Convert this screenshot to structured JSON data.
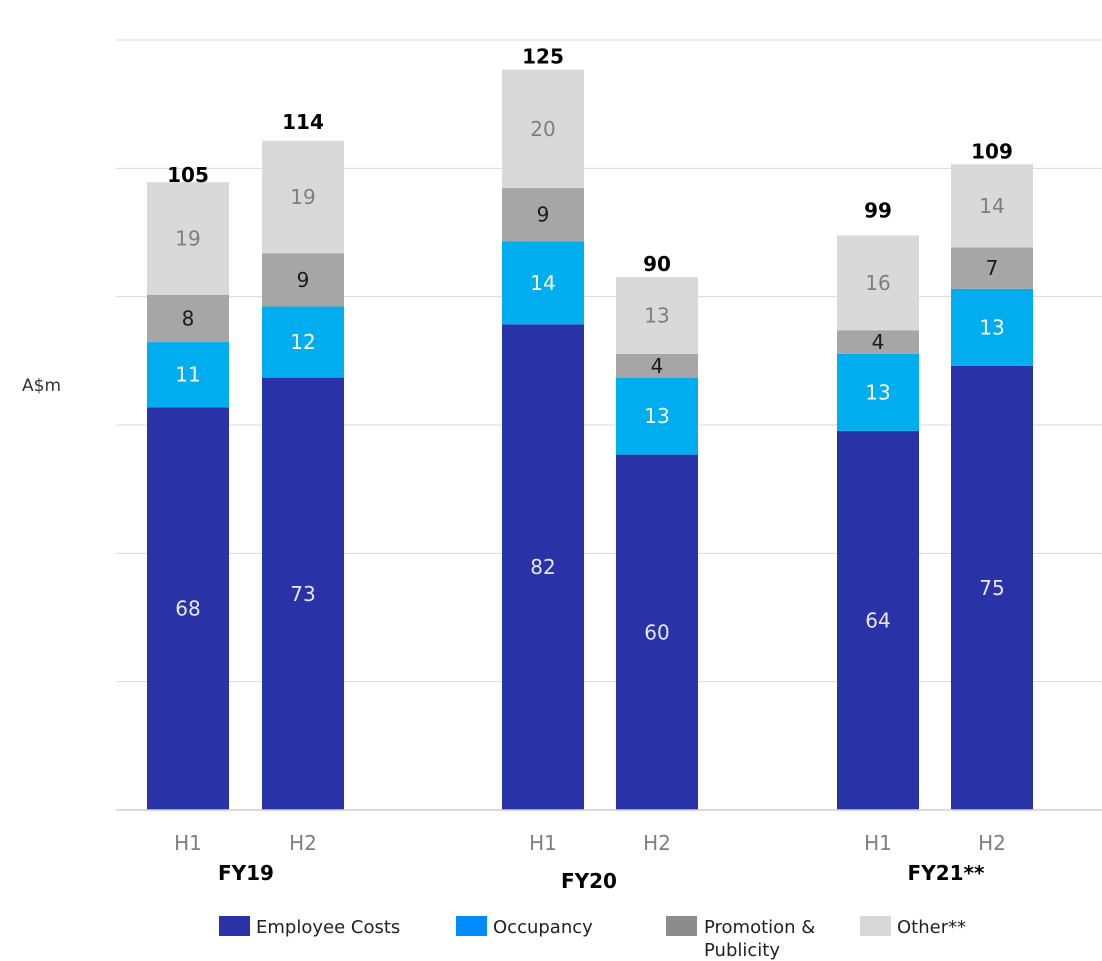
{
  "chart_data": {
    "type": "bar",
    "stacked": true,
    "ylabel": "A$m",
    "ylim": [
      0,
      130
    ],
    "grid": true,
    "legend_placement": "bottom",
    "groups": [
      {
        "label": "FY19",
        "categories": [
          "H1",
          "H2"
        ]
      },
      {
        "label": "FY20",
        "categories": [
          "H1",
          "H2"
        ]
      },
      {
        "label": "FY21**",
        "categories": [
          "H1",
          "H2"
        ]
      }
    ],
    "categories": [
      "H1",
      "H2",
      "H1",
      "H2",
      "H1",
      "H2"
    ],
    "series": [
      {
        "name": "Employee Costs",
        "color": "#2a32a8",
        "label_color": "#e8e8f4",
        "values": [
          68,
          73,
          82,
          60,
          64,
          75
        ]
      },
      {
        "name": "Occupancy",
        "color": "#00aeef",
        "label_color": "#ffffff",
        "values": [
          11,
          12,
          14,
          13,
          13,
          13
        ]
      },
      {
        "name": "Promotion & Publicity",
        "color": "#a6a6a6",
        "label_color": "#1a1a1a",
        "values": [
          8,
          9,
          9,
          4,
          4,
          7
        ]
      },
      {
        "name": "Other**",
        "color": "#d9d9d9",
        "label_color": "#7f7f7f",
        "values": [
          19,
          19,
          20,
          13,
          16,
          14
        ]
      }
    ],
    "totals": [
      105,
      114,
      125,
      90,
      99,
      109
    ]
  },
  "legend": {
    "items": [
      {
        "label": "Employee Costs",
        "color": "#2a32a8"
      },
      {
        "label": "Occupancy",
        "color": "#008cff"
      },
      {
        "label_line1": "Promotion &",
        "label_line2": "Publicity",
        "color": "#8c8c8c"
      },
      {
        "label": "Other**",
        "color": "#d9d9d9"
      }
    ]
  }
}
